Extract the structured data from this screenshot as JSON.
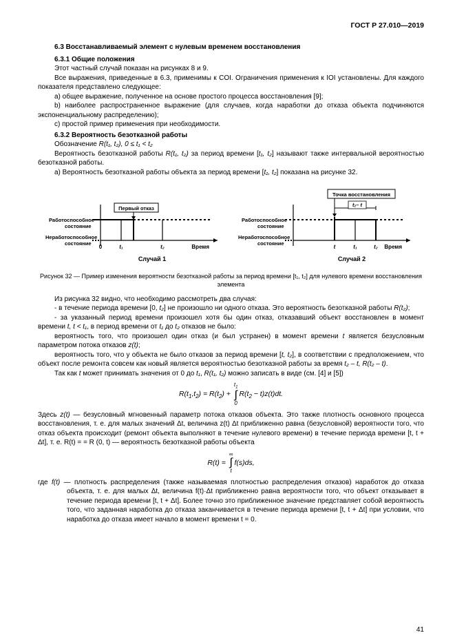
{
  "header": "ГОСТ Р 27.010—2019",
  "s63_title": "6.3 Восстанавливаемый элемент с нулевым временем восстановления",
  "s631_title": "6.3.1 Общие положения",
  "p1": "Этот частный случай показан на рисунках 8 и 9.",
  "p2": "Все выражения, приведенные в 6.3, применимы к COI. Ограничения применения к IOI установлены. Для каждого показателя представлено следующее:",
  "p3": "a) общее выражение, полученное на основе простого процесса восстановления [9];",
  "p4": "b) наиболее распространенное выражение (для случаев, когда наработки до отказа объекта подчиняются экспоненциальному распределению);",
  "p5": "c) простой пример применения при необходимости.",
  "s632_title": "6.3.2 Вероятность безотказной работы",
  "p6a": "Обозначение ",
  "p6b": "R(t₁, t₂), 0 ≤ t₁ < t₂",
  "p7a": "Вероятность безотказной работы ",
  "p7b": "R(t₁, t₂)",
  "p7c": " за период времени [",
  "p7d": "t₁, t₂",
  "p7e": "] называют также интервальной вероятностью безотказной работы.",
  "p8a": "a) Вероятность безотказной работы объекта за период времени [",
  "p8b": "t₁, t₂",
  "p8c": "] показана на рисунке 32.",
  "fig": {
    "left_title": "Случай 1",
    "right_title": "Случай 2",
    "state_ok": "Работоспособное состояние",
    "state_bad": "Неработоспособное состояние",
    "first_fail": "Первый отказ",
    "restore_point": "Точка восстановления",
    "time": "Время",
    "t2_minus_t": "t₂ – t",
    "t0": "0",
    "t1": "t₁",
    "t2": "t₂",
    "t": "t"
  },
  "fig_caption": "Рисунок 32 — Пример изменения вероятности безотказной работы за период времени [t₁, t₂] для нулевого времени  восстановления элемента",
  "p9": "Из рисунка 32 видно, что необходимо рассмотреть два случая:",
  "p10a": "- в течение периода времени [0, ",
  "p10b": "t₂",
  "p10c": "] не произошло ни одного отказа. Это вероятность безотказной работы ",
  "p10d": "R(t₂)",
  "p10e": ";",
  "p11a": "- за указанный период времени произошел хотя бы один отказ, отказавший объект восстановлен в момент времени ",
  "p11b": "t, t < t₁",
  "p11c": ", в период времени от ",
  "p11d": "t₁",
  "p11e": " до ",
  "p11f": "t₂",
  "p11g": " отказов не было:",
  "p12a": "вероятность того, что произошел один отказ (и был устранен) в момент времени ",
  "p12b": "t",
  "p12c": " является безусловным параметром потока отказов ",
  "p12d": "z(t)",
  "p12e": ";",
  "p13a": "вероятность того, что у объекта не было отказов за период времени [",
  "p13b": "t, t₂",
  "p13c": "], в соответствии с предположением, что объект после ремонта совсем как новый является вероятностью безотказной работы за время ",
  "p13d": "t₂ – t, R(t₂ – t)",
  "p13e": ".",
  "p14a": "Так как ",
  "p14b": "t",
  "p14c": " может принимать значения от 0 до ",
  "p14d": "t₁",
  "p14e": ", ",
  "p14f": "R(t₁, t₂)",
  "p14g": " можно записать в виде (см. [4] и [5])",
  "formula1_html": "<span>R(t<sub>1</sub>,t<sub>2</sub>) = R(t<sub>2</sub>) + </span><span style='display:inline-block;vertical-align:middle;font-size:8px;line-height:1;text-align:center;margin:0 2px'><span>t<sub>1</sub></span><br><span style='font-size:16px'>∫</span><br><span>0</span></span><span>R(t<sub>2</sub> − t)z(t)dt.</span>",
  "p15_lead": "Здесь ",
  "p15_sym": "z(t)",
  "p15_body": " — безусловный мгновенный параметр потока отказов объекта. Это  также плотность основного процесса восстановления, т. е. для малых значений Δt, величина z(t) Δt приближенно равна (безусловной) вероятности того, что отказ объекта происходит (ремонт объекта выполняют в течение нулевого времени) в течение периода времени [t, t + Δt], т. е. R(t) = = R (0, t) — вероятность безотказной работы объекта",
  "formula2_html": "<span>R(t) = </span><span style='display:inline-block;vertical-align:middle;font-size:8px;line-height:1;text-align:center;margin:0 2px'><span>∞</span><br><span style='font-size:16px'>∫</span><br><span>t</span></span><span>f(s)ds,</span>",
  "p16_lead": "где ",
  "p16_sym": "f(t)",
  "p16_body": " — плотность распределения (также называемая плотностью распределения отказов) наработок до отказа объекта, т. е. для малых Δt, величина f(t)·Δt приближенно равна вероятности того, что объект отказывает в течение периода времени [t, t + Δt]. Более точно это приближенное значение представляет собой вероятность того, что заданная наработка до отказа заканчивается в течение периода времени [t, t + Δt] при условии, что наработка до отказа имеет начало в момент времени t = 0.",
  "page_number": "41"
}
